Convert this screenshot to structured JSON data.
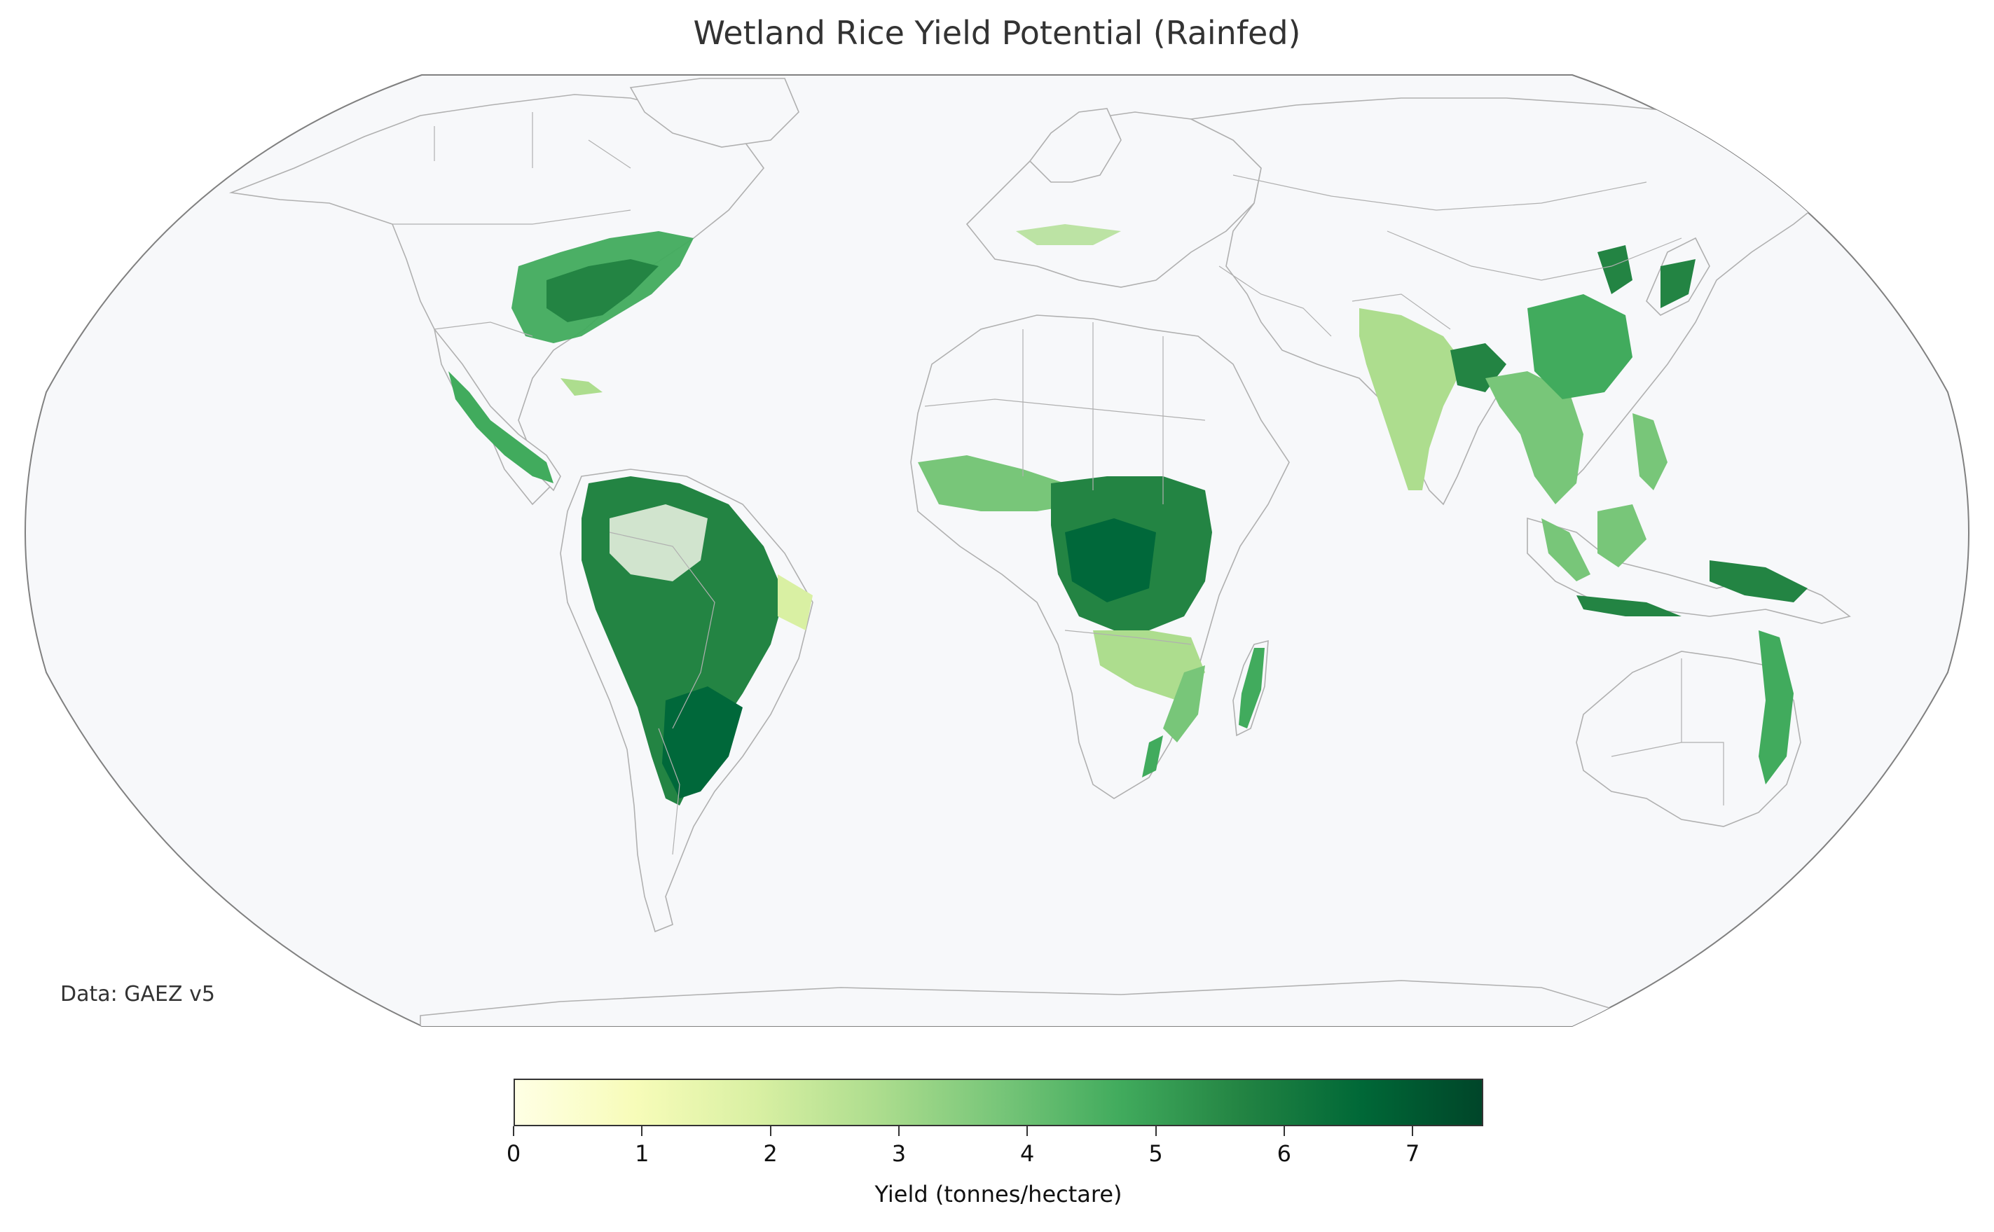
{
  "title": "Wetland Rice Yield Potential (Rainfed)",
  "source_note": "Data: GAEZ v5",
  "map": {
    "projection": "Robinson",
    "ocean_color": "#f7f8fa",
    "border_color": "#b0b0b0",
    "frame_color": "#808080",
    "regions_with_yield": [
      {
        "name": "Eastern United States",
        "level": 5.5
      },
      {
        "name": "Mexico and Central America",
        "level": 5.0
      },
      {
        "name": "Caribbean",
        "level": 3.5
      },
      {
        "name": "Northern South America",
        "level": 6.0
      },
      {
        "name": "Brazil",
        "level": 6.5
      },
      {
        "name": "Paraguay and southern Brazil",
        "level": 7.0
      },
      {
        "name": "West Africa",
        "level": 3.5
      },
      {
        "name": "Central Africa",
        "level": 6.5
      },
      {
        "name": "East Africa",
        "level": 4.0
      },
      {
        "name": "Southern Africa (Mozambique/Zambia)",
        "level": 3.0
      },
      {
        "name": "Madagascar",
        "level": 5.0
      },
      {
        "name": "South Africa east coast",
        "level": 5.0
      },
      {
        "name": "Southern Europe",
        "level": 3.0
      },
      {
        "name": "India",
        "level": 3.0
      },
      {
        "name": "Bangladesh / Northeast India",
        "level": 6.0
      },
      {
        "name": "Southeast Asia",
        "level": 4.5
      },
      {
        "name": "Southern China",
        "level": 5.5
      },
      {
        "name": "Korea and Japan",
        "level": 6.0
      },
      {
        "name": "Philippines",
        "level": 4.5
      },
      {
        "name": "Indonesia",
        "level": 4.0
      },
      {
        "name": "New Guinea",
        "level": 6.0
      },
      {
        "name": "Eastern Australia",
        "level": 5.5
      }
    ]
  },
  "colorbar": {
    "label": "Yield (tonnes/hectare)",
    "min": 0,
    "max": 7.55,
    "colormap": "YlGn",
    "colors": [
      "#ffffe5",
      "#f7fcb9",
      "#d9f0a3",
      "#addd8e",
      "#78c679",
      "#41ab5d",
      "#238443",
      "#006837",
      "#004529"
    ],
    "ticks": [
      {
        "value": 0,
        "label": "0"
      },
      {
        "value": 1,
        "label": "1"
      },
      {
        "value": 2,
        "label": "2"
      },
      {
        "value": 3,
        "label": "3"
      },
      {
        "value": 4,
        "label": "4"
      },
      {
        "value": 5,
        "label": "5"
      },
      {
        "value": 6,
        "label": "6"
      },
      {
        "value": 7,
        "label": "7"
      }
    ]
  }
}
